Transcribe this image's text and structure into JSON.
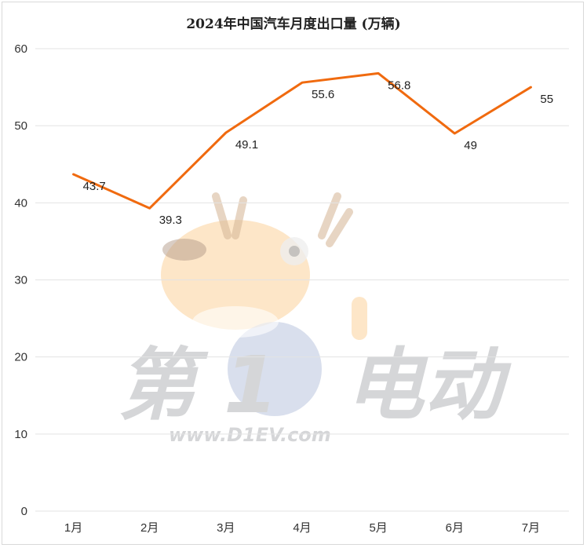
{
  "chart_data": {
    "type": "line",
    "title": "2024年中国汽车月度出口量 (万辆)",
    "categories": [
      "1月",
      "2月",
      "3月",
      "4月",
      "5月",
      "6月",
      "7月"
    ],
    "values": [
      43.7,
      39.3,
      49.1,
      55.6,
      56.8,
      49,
      55
    ],
    "data_labels": [
      "43.7",
      "39.3",
      "49.1",
      "55.6",
      "56.8",
      "49",
      "55"
    ],
    "ylim": [
      0,
      60
    ],
    "yticks": [
      0,
      10,
      20,
      30,
      40,
      50,
      60
    ],
    "grid": true,
    "legend": "none",
    "line_color": "#f06a0f"
  },
  "watermark": {
    "text_main_left": "第",
    "text_main_mid": "1",
    "text_main_right": "电动",
    "url": "www.D1EV.com"
  }
}
